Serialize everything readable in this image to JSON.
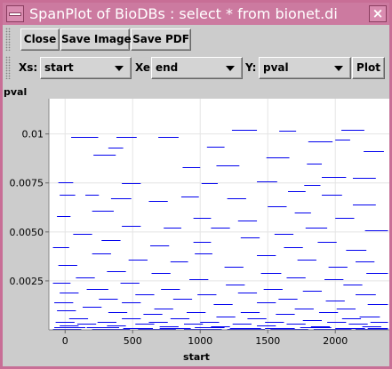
{
  "window": {
    "title": "SpanPlot of BioDBs : select *  from bionet.di",
    "close_glyph": "×"
  },
  "toolbar": {
    "close_label": "Close",
    "save_image_label": "Save Image",
    "save_pdf_label": "Save PDF"
  },
  "controls": {
    "xs_label": "Xs:",
    "xs_value": "start",
    "xe_label": "Xe:",
    "xe_value": "end",
    "y_label": "Y:",
    "y_value": "pval",
    "plot_label": "Plot"
  },
  "colors": {
    "span": "#0000ee",
    "window_frame": "#c86e96",
    "panel": "#cccccc"
  },
  "icons": [
    "window-menu-icon",
    "close-window-icon",
    "dropdown-arrow-icon",
    "toolbar-grip-icon"
  ],
  "chart_data": {
    "type": "span",
    "ylabel": "pval",
    "xlabel": "start",
    "xlim": [
      -120,
      2400
    ],
    "ylim": [
      0,
      0.0118
    ],
    "x_ticks": [
      0,
      500,
      1000,
      1500,
      2000
    ],
    "x_tick_labels": [
      "0",
      "500",
      "1000",
      "1500",
      "2000"
    ],
    "y_ticks": [
      0.0025,
      0.005,
      0.0075,
      0.01
    ],
    "y_tick_labels": [
      "0.0025",
      "0.0050",
      "0.0075",
      "0.01"
    ],
    "grid": true,
    "spans": [
      [
        45,
        245,
        0.00985
      ],
      [
        380,
        530,
        0.00985
      ],
      [
        690,
        840,
        0.00985
      ],
      [
        1235,
        1420,
        0.0102
      ],
      [
        1585,
        1710,
        0.01015
      ],
      [
        2045,
        2215,
        0.0102
      ],
      [
        320,
        430,
        0.0093
      ],
      [
        1050,
        1180,
        0.00935
      ],
      [
        1800,
        1980,
        0.0096
      ],
      [
        2000,
        2110,
        0.0097
      ],
      [
        210,
        375,
        0.00895
      ],
      [
        1490,
        1660,
        0.0088
      ],
      [
        2210,
        2360,
        0.0091
      ],
      [
        1120,
        1290,
        0.0084
      ],
      [
        1790,
        1900,
        0.0085
      ],
      [
        870,
        1000,
        0.0083
      ],
      [
        1900,
        2080,
        0.0078
      ],
      [
        2130,
        2300,
        0.00775
      ],
      [
        -50,
        60,
        0.00755
      ],
      [
        420,
        560,
        0.0075
      ],
      [
        1010,
        1130,
        0.0075
      ],
      [
        1420,
        1570,
        0.0076
      ],
      [
        1770,
        1890,
        0.0074
      ],
      [
        1650,
        1780,
        0.0071
      ],
      [
        -40,
        75,
        0.0069
      ],
      [
        150,
        250,
        0.0069
      ],
      [
        1900,
        2050,
        0.0069
      ],
      [
        340,
        490,
        0.0067
      ],
      [
        620,
        760,
        0.0066
      ],
      [
        860,
        990,
        0.0068
      ],
      [
        1200,
        1340,
        0.0067
      ],
      [
        2130,
        2300,
        0.0064
      ],
      [
        1500,
        1640,
        0.0063
      ],
      [
        200,
        360,
        0.0061
      ],
      [
        1700,
        1820,
        0.006
      ],
      [
        -60,
        40,
        0.0058
      ],
      [
        950,
        1080,
        0.0057
      ],
      [
        1280,
        1420,
        0.0056
      ],
      [
        2000,
        2140,
        0.0057
      ],
      [
        420,
        560,
        0.0053
      ],
      [
        730,
        860,
        0.0052
      ],
      [
        1080,
        1220,
        0.0052
      ],
      [
        1780,
        1940,
        0.0052
      ],
      [
        60,
        200,
        0.0049
      ],
      [
        1550,
        1690,
        0.0049
      ],
      [
        2220,
        2390,
        0.0051
      ],
      [
        270,
        410,
        0.0046
      ],
      [
        950,
        1080,
        0.0045
      ],
      [
        1300,
        1440,
        0.0047
      ],
      [
        1870,
        2010,
        0.0045
      ],
      [
        -90,
        30,
        0.0042
      ],
      [
        630,
        770,
        0.0043
      ],
      [
        1620,
        1760,
        0.0042
      ],
      [
        2080,
        2230,
        0.0041
      ],
      [
        200,
        340,
        0.0039
      ],
      [
        960,
        1090,
        0.0039
      ],
      [
        1420,
        1560,
        0.0038
      ],
      [
        470,
        610,
        0.0036
      ],
      [
        780,
        910,
        0.0035
      ],
      [
        1720,
        1860,
        0.0036
      ],
      [
        2150,
        2290,
        0.0035
      ],
      [
        -50,
        90,
        0.0033
      ],
      [
        1180,
        1320,
        0.0032
      ],
      [
        1950,
        2090,
        0.0032
      ],
      [
        310,
        450,
        0.003
      ],
      [
        640,
        780,
        0.0029
      ],
      [
        1450,
        1600,
        0.0029
      ],
      [
        2230,
        2390,
        0.0029
      ],
      [
        80,
        220,
        0.0027
      ],
      [
        920,
        1060,
        0.0026
      ],
      [
        1640,
        1780,
        0.0027
      ],
      [
        1920,
        2060,
        0.0026
      ],
      [
        -90,
        40,
        0.0024
      ],
      [
        410,
        550,
        0.0024
      ],
      [
        1190,
        1330,
        0.0023
      ],
      [
        2060,
        2200,
        0.0023
      ],
      [
        160,
        320,
        0.0021
      ],
      [
        710,
        850,
        0.0021
      ],
      [
        1470,
        1610,
        0.0021
      ],
      [
        1760,
        1900,
        0.002
      ],
      [
        -40,
        100,
        0.0019
      ],
      [
        520,
        660,
        0.0018
      ],
      [
        980,
        1120,
        0.0018
      ],
      [
        1280,
        1420,
        0.0019
      ],
      [
        2150,
        2300,
        0.0018
      ],
      [
        250,
        390,
        0.0016
      ],
      [
        800,
        940,
        0.0016
      ],
      [
        1580,
        1720,
        0.0016
      ],
      [
        1930,
        2070,
        0.0015
      ],
      [
        -80,
        60,
        0.0014
      ],
      [
        420,
        560,
        0.0014
      ],
      [
        1100,
        1240,
        0.0013
      ],
      [
        1420,
        1560,
        0.0014
      ],
      [
        2240,
        2390,
        0.0013
      ],
      [
        130,
        270,
        0.0012
      ],
      [
        660,
        800,
        0.0011
      ],
      [
        1700,
        1840,
        0.0011
      ],
      [
        2010,
        2150,
        0.0011
      ],
      [
        -60,
        80,
        0.001
      ],
      [
        320,
        460,
        0.0009
      ],
      [
        900,
        1040,
        0.0009
      ],
      [
        1300,
        1440,
        0.0009
      ],
      [
        1880,
        2020,
        0.0009
      ],
      [
        580,
        720,
        0.0008
      ],
      [
        1120,
        1260,
        0.0007
      ],
      [
        1560,
        1700,
        0.0008
      ],
      [
        2180,
        2330,
        0.0007
      ],
      [
        30,
        170,
        0.0006
      ],
      [
        420,
        560,
        0.0006
      ],
      [
        780,
        920,
        0.0006
      ],
      [
        1350,
        1490,
        0.0006
      ],
      [
        1760,
        1900,
        0.0005
      ],
      [
        2050,
        2190,
        0.0006
      ],
      [
        -70,
        70,
        0.0004
      ],
      [
        240,
        380,
        0.0004
      ],
      [
        620,
        760,
        0.0004
      ],
      [
        1000,
        1140,
        0.0004
      ],
      [
        1480,
        1620,
        0.0004
      ],
      [
        1940,
        2080,
        0.0004
      ],
      [
        2260,
        2390,
        0.0004
      ],
      [
        90,
        230,
        0.0003
      ],
      [
        520,
        660,
        0.0003
      ],
      [
        880,
        1020,
        0.0003
      ],
      [
        1240,
        1380,
        0.0003
      ],
      [
        1640,
        1780,
        0.0003
      ],
      [
        2100,
        2240,
        0.0003
      ],
      [
        -40,
        100,
        0.00022
      ],
      [
        310,
        450,
        0.00022
      ],
      [
        700,
        840,
        0.0002
      ],
      [
        1080,
        1220,
        0.0002
      ],
      [
        1420,
        1560,
        0.00022
      ],
      [
        1820,
        1960,
        0.0002
      ],
      [
        2200,
        2340,
        0.0002
      ],
      [
        -80,
        150,
        0.00012
      ],
      [
        160,
        400,
        0.00012
      ],
      [
        430,
        650,
        0.0001
      ],
      [
        700,
        930,
        0.0001
      ],
      [
        960,
        1180,
        0.00012
      ],
      [
        1220,
        1450,
        0.0001
      ],
      [
        1480,
        1700,
        0.0001
      ],
      [
        1740,
        1970,
        0.00012
      ],
      [
        2000,
        2220,
        0.0001
      ],
      [
        2240,
        2390,
        0.0001
      ],
      [
        -90,
        120,
        5e-05
      ],
      [
        200,
        480,
        5e-05
      ],
      [
        540,
        820,
        5e-05
      ],
      [
        880,
        1160,
        5e-05
      ],
      [
        1200,
        1480,
        5e-05
      ],
      [
        1520,
        1800,
        5e-05
      ],
      [
        1840,
        2120,
        5e-05
      ],
      [
        2150,
        2390,
        5e-05
      ]
    ]
  }
}
